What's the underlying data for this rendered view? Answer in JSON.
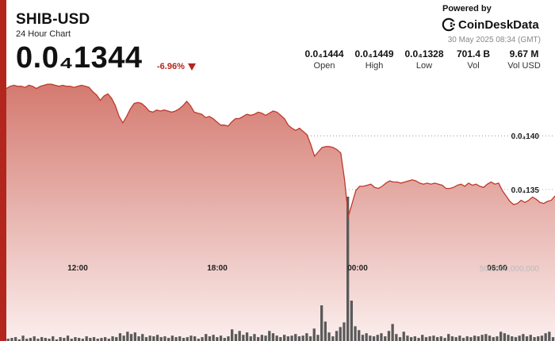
{
  "header": {
    "title": "SHIB-USD",
    "subtitle": "24 Hour Chart",
    "price": "0.0₄1344",
    "change": "-6.96%"
  },
  "branding": {
    "powered_by": "Powered by",
    "brand": "CoinDeskData",
    "timestamp": "30 May 2025 08:34 (GMT)"
  },
  "stats": [
    {
      "value": "0.0₄1444",
      "label": "Open"
    },
    {
      "value": "0.0₄1449",
      "label": "High"
    },
    {
      "value": "0.0₄1328",
      "label": "Low"
    },
    {
      "value": "701.4 B",
      "label": "Vol"
    },
    {
      "value": "9.67 M",
      "label": "Vol USD"
    }
  ],
  "colors": {
    "accent": "#b3261e",
    "line": "#c0392b",
    "fill_top": "#d47a70",
    "fill_bottom": "#fbeeed",
    "volume_bar": "#5a5a5a",
    "down": "#b3261e"
  },
  "icons": {
    "trend": "down-triangle-icon",
    "brand_logo": "coindesk-logo-icon"
  },
  "chart_data": {
    "type": "area",
    "title": "SHIB-USD",
    "x_ticks": [
      "12:00",
      "18:00",
      "00:00",
      "06:00"
    ],
    "y_ticks": [
      {
        "label": "0.0₄140",
        "value": 1.4e-05
      },
      {
        "label": "0.0₄135",
        "value": 1.35e-05
      }
    ],
    "volume_tick_label": "500,000,000,000",
    "ylim": [
      1.305e-05,
      1.454e-05
    ],
    "grid": true,
    "series": [
      {
        "values": [
          1.444e-05,
          1.446e-05,
          1.447e-05,
          1.446e-05,
          1.446e-05,
          1.445e-05,
          1.447e-05,
          1.446e-05,
          1.444e-05,
          1.446e-05,
          1.447e-05,
          1.448e-05,
          1.448e-05,
          1.447e-05,
          1.446e-05,
          1.447e-05,
          1.446e-05,
          1.446e-05,
          1.445e-05,
          1.446e-05,
          1.447e-05,
          1.446e-05,
          1.445e-05,
          1.441e-05,
          1.438e-05,
          1.433e-05,
          1.437e-05,
          1.439e-05,
          1.435e-05,
          1.428e-05,
          1.418e-05,
          1.412e-05,
          1.418e-05,
          1.425e-05,
          1.43e-05,
          1.431e-05,
          1.43e-05,
          1.427e-05,
          1.423e-05,
          1.422e-05,
          1.424e-05,
          1.423e-05,
          1.424e-05,
          1.423e-05,
          1.422e-05,
          1.423e-05,
          1.425e-05,
          1.428e-05,
          1.432e-05,
          1.428e-05,
          1.422e-05,
          1.421e-05,
          1.42e-05,
          1.417e-05,
          1.418e-05,
          1.416e-05,
          1.413e-05,
          1.41e-05,
          1.41e-05,
          1.409e-05,
          1.413e-05,
          1.416e-05,
          1.416e-05,
          1.418e-05,
          1.42e-05,
          1.419e-05,
          1.42e-05,
          1.422e-05,
          1.421e-05,
          1.419e-05,
          1.421e-05,
          1.423e-05,
          1.422e-05,
          1.419e-05,
          1.416e-05,
          1.41e-05,
          1.407e-05,
          1.405e-05,
          1.407e-05,
          1.404e-05,
          1.401e-05,
          1.392e-05,
          1.381e-05,
          1.385e-05,
          1.389e-05,
          1.39e-05,
          1.39e-05,
          1.389e-05,
          1.387e-05,
          1.384e-05,
          1.359e-05,
          1.325e-05,
          1.337e-05,
          1.349e-05,
          1.353e-05,
          1.353e-05,
          1.354e-05,
          1.355e-05,
          1.352e-05,
          1.351e-05,
          1.353e-05,
          1.356e-05,
          1.358e-05,
          1.357e-05,
          1.357e-05,
          1.356e-05,
          1.357e-05,
          1.358e-05,
          1.359e-05,
          1.358e-05,
          1.356e-05,
          1.355e-05,
          1.356e-05,
          1.355e-05,
          1.356e-05,
          1.355e-05,
          1.354e-05,
          1.351e-05,
          1.351e-05,
          1.352e-05,
          1.354e-05,
          1.355e-05,
          1.353e-05,
          1.356e-05,
          1.354e-05,
          1.355e-05,
          1.353e-05,
          1.352e-05,
          1.355e-05,
          1.357e-05,
          1.355e-05,
          1.356e-05,
          1.349e-05,
          1.344e-05,
          1.339e-05,
          1.336e-05,
          1.337e-05,
          1.34e-05,
          1.338e-05,
          1.34e-05,
          1.343e-05,
          1.341e-05,
          1.338e-05,
          1.337e-05,
          1.339e-05,
          1.34e-05,
          1.344e-05
        ]
      },
      {
        "name": "Vol",
        "values": [
          0.03,
          0.04,
          0.05,
          0.02,
          0.07,
          0.03,
          0.04,
          0.06,
          0.03,
          0.05,
          0.04,
          0.03,
          0.06,
          0.02,
          0.05,
          0.04,
          0.07,
          0.03,
          0.05,
          0.04,
          0.03,
          0.06,
          0.04,
          0.05,
          0.03,
          0.04,
          0.05,
          0.03,
          0.06,
          0.05,
          0.1,
          0.07,
          0.12,
          0.09,
          0.11,
          0.06,
          0.09,
          0.05,
          0.07,
          0.06,
          0.08,
          0.05,
          0.06,
          0.04,
          0.07,
          0.05,
          0.06,
          0.04,
          0.05,
          0.07,
          0.06,
          0.03,
          0.05,
          0.09,
          0.06,
          0.08,
          0.05,
          0.07,
          0.04,
          0.06,
          0.15,
          0.09,
          0.13,
          0.08,
          0.11,
          0.06,
          0.09,
          0.05,
          0.08,
          0.07,
          0.13,
          0.1,
          0.07,
          0.05,
          0.08,
          0.06,
          0.07,
          0.09,
          0.06,
          0.07,
          0.1,
          0.06,
          0.16,
          0.08,
          0.46,
          0.25,
          0.11,
          0.06,
          0.13,
          0.18,
          0.24,
          1.86,
          0.52,
          0.19,
          0.14,
          0.08,
          0.1,
          0.07,
          0.06,
          0.08,
          0.1,
          0.06,
          0.13,
          0.22,
          0.09,
          0.05,
          0.12,
          0.07,
          0.05,
          0.06,
          0.04,
          0.08,
          0.05,
          0.06,
          0.07,
          0.05,
          0.06,
          0.04,
          0.09,
          0.06,
          0.05,
          0.07,
          0.04,
          0.06,
          0.05,
          0.07,
          0.06,
          0.08,
          0.09,
          0.07,
          0.05,
          0.06,
          0.12,
          0.1,
          0.08,
          0.06,
          0.05,
          0.07,
          0.09,
          0.06,
          0.08,
          0.05,
          0.06,
          0.07,
          0.1,
          0.12,
          0.05
        ]
      }
    ]
  }
}
